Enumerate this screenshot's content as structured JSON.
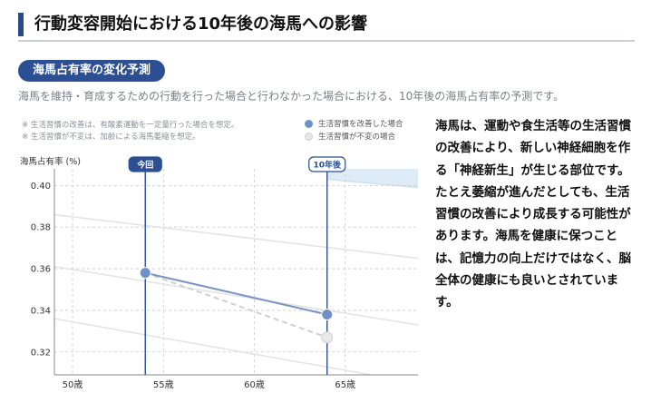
{
  "header": {
    "title": "行動変容開始における10年後の海馬への影響",
    "section_badge": "海馬占有率の変化予測",
    "lead": "海馬を維持・育成するための行動を行った場合と行わなかった場合における、10年後の海馬占有率の予測です。"
  },
  "notes": [
    "※ 生活習慣の改善は、有酸素運動を一定量行った場合を想定。",
    "※ 生活習慣が不変は、加齢による海馬萎縮を想定。"
  ],
  "colors": {
    "accent": "#2c4e93",
    "improved": "#6f8fc8",
    "unchanged": "#dcdcdc",
    "band": "#dcebf6"
  },
  "chart_data": {
    "type": "line",
    "ylabel": "海馬占有率 (%)",
    "xlabel": "",
    "x_ticks": [
      50,
      55,
      60,
      65
    ],
    "x_tick_labels": [
      "50歳",
      "55歳",
      "60歳",
      "65歳"
    ],
    "y_ticks": [
      0.32,
      0.34,
      0.36,
      0.38,
      0.4
    ],
    "y_tick_labels": [
      "0.32",
      "0.34",
      "0.36",
      "0.38",
      "0.40"
    ],
    "xlim": [
      49,
      69
    ],
    "ylim": [
      0.309,
      0.408
    ],
    "markers": [
      {
        "label": "今回",
        "x": 54
      },
      {
        "label": "10年後",
        "x": 64
      }
    ],
    "series": [
      {
        "name": "生活習慣を改善した場合",
        "x": [
          54,
          64
        ],
        "y": [
          0.358,
          0.338
        ],
        "style": "solid",
        "color": "#6f8fc8"
      },
      {
        "name": "生活習慣が不変の場合",
        "x": [
          54,
          64
        ],
        "y": [
          0.358,
          0.327
        ],
        "style": "dashed",
        "color": "#dcdcdc"
      }
    ],
    "background_trends": [
      {
        "x": [
          49,
          69
        ],
        "y": [
          0.386,
          0.365
        ]
      },
      {
        "x": [
          49,
          69
        ],
        "y": [
          0.361,
          0.333
        ]
      },
      {
        "x": [
          49,
          69
        ],
        "y": [
          0.336,
          0.305
        ]
      }
    ],
    "upper_band": {
      "x": [
        64,
        69
      ],
      "y": [
        0.403,
        0.399
      ]
    },
    "grid": true,
    "legend": "top-right"
  },
  "side_text": [
    "海馬は、運動や食生活等の生活習慣の改善により、新しい神経細胞を作る「神経新生」が生じる部位です。",
    "たとえ萎縮が進んだとしても、生活習慣の改善により成長する可能性があります。海馬を健康に保つことは、記憶力の向上だけではなく、脳全体の健康にも良いとされています。"
  ]
}
